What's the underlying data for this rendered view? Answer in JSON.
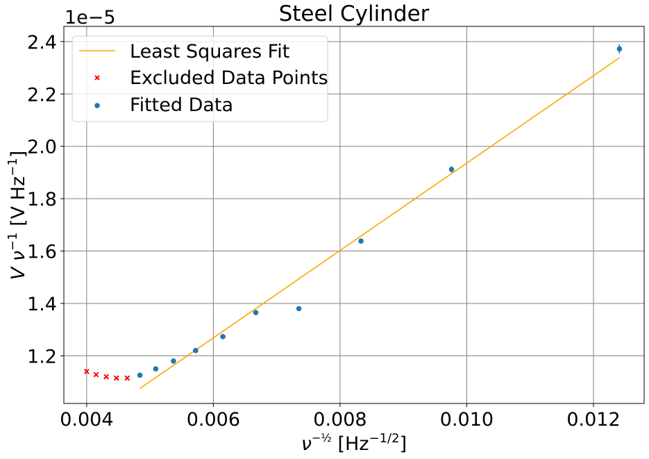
{
  "chart_data": {
    "type": "scatter",
    "title": "Steel Cylinder",
    "xlabel": {
      "main": "ν",
      "sup": "−½",
      "unit_open": " [Hz",
      "unit_sup": "−1/2",
      "unit_close": "]"
    },
    "ylabel": {
      "v": "V",
      "nu": " ν",
      "sup1": "−1",
      "unit_open": " [V Hz",
      "unit_sup": "−1",
      "unit_close": "]"
    },
    "offset_text": "1e−5",
    "xlim": [
      0.00364,
      0.0128
    ],
    "ylim": [
      1.018,
      2.458
    ],
    "xticks": [
      0.004,
      0.006,
      0.008,
      0.01,
      0.012
    ],
    "xtick_labels": [
      "0.004",
      "0.006",
      "0.008",
      "0.010",
      "0.012"
    ],
    "yticks": [
      1.2,
      1.4,
      1.6,
      1.8,
      2.0,
      2.2,
      2.4
    ],
    "ytick_labels": [
      "1.2",
      "1.4",
      "1.6",
      "1.8",
      "2.0",
      "2.2",
      "2.4"
    ],
    "grid": true,
    "legend_position": "top-left",
    "series": [
      {
        "name": "Least Squares Fit",
        "kind": "line",
        "color": "#ffa500",
        "x": [
          0.00484,
          0.01241
        ],
        "y": [
          1.075,
          2.338
        ]
      },
      {
        "name": "Excluded Data Points",
        "kind": "x-marker",
        "color": "#ff0000",
        "x": [
          0.004,
          0.00415,
          0.00431,
          0.00447,
          0.00464
        ],
        "y": [
          1.14,
          1.128,
          1.12,
          1.115,
          1.115
        ]
      },
      {
        "name": "Fitted Data",
        "kind": "dot-marker",
        "color": "#1f77b4",
        "x": [
          0.00484,
          0.00509,
          0.00537,
          0.00572,
          0.00615,
          0.00667,
          0.00735,
          0.00833,
          0.00976,
          0.01241
        ],
        "y": [
          1.126,
          1.15,
          1.18,
          1.22,
          1.273,
          1.365,
          1.38,
          1.638,
          1.912,
          2.372
        ],
        "yerr": [
          0.003,
          0.003,
          0.003,
          0.004,
          0.004,
          0.005,
          0.005,
          0.008,
          0.012,
          0.018
        ]
      }
    ]
  }
}
